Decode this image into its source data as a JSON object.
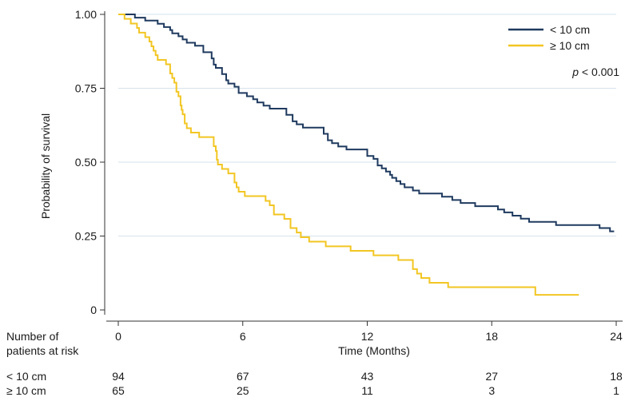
{
  "chart_data": {
    "type": "line",
    "title": "",
    "xlabel": "Time (Months)",
    "ylabel": "Probability of survival",
    "xlim": [
      0,
      24
    ],
    "ylim": [
      0,
      1
    ],
    "x_ticks": [
      0,
      6,
      12,
      18,
      24
    ],
    "y_ticks": [
      0,
      0.25,
      0.5,
      0.75,
      1.0
    ],
    "y_tick_labels": [
      "0",
      "0.25",
      "0.50",
      "0.75",
      "1.00"
    ],
    "grid": "horizontal",
    "legend_position": "top-right",
    "annotation": {
      "italic": "p",
      "text": " < 0.001"
    },
    "series": [
      {
        "name": "< 10 cm",
        "color": "#1f3a5f",
        "points": [
          [
            0,
            1.0
          ],
          [
            0.5,
            1.0
          ],
          [
            0.8,
            0.989
          ],
          [
            1.3,
            0.979
          ],
          [
            1.9,
            0.968
          ],
          [
            2.2,
            0.957
          ],
          [
            2.5,
            0.947
          ],
          [
            2.6,
            0.936
          ],
          [
            2.9,
            0.926
          ],
          [
            3.1,
            0.915
          ],
          [
            3.3,
            0.904
          ],
          [
            3.7,
            0.894
          ],
          [
            4.1,
            0.872
          ],
          [
            4.5,
            0.851
          ],
          [
            4.6,
            0.83
          ],
          [
            4.7,
            0.819
          ],
          [
            5.0,
            0.798
          ],
          [
            5.2,
            0.777
          ],
          [
            5.3,
            0.766
          ],
          [
            5.6,
            0.755
          ],
          [
            5.8,
            0.734
          ],
          [
            6.2,
            0.723
          ],
          [
            6.5,
            0.713
          ],
          [
            6.7,
            0.702
          ],
          [
            7.0,
            0.691
          ],
          [
            7.3,
            0.681
          ],
          [
            8.1,
            0.66
          ],
          [
            8.4,
            0.638
          ],
          [
            8.6,
            0.628
          ],
          [
            8.9,
            0.617
          ],
          [
            9.9,
            0.596
          ],
          [
            10.1,
            0.574
          ],
          [
            10.3,
            0.564
          ],
          [
            10.6,
            0.553
          ],
          [
            11.0,
            0.543
          ],
          [
            12.0,
            0.521
          ],
          [
            12.3,
            0.511
          ],
          [
            12.5,
            0.489
          ],
          [
            12.7,
            0.479
          ],
          [
            12.9,
            0.468
          ],
          [
            13.1,
            0.457
          ],
          [
            13.2,
            0.447
          ],
          [
            13.4,
            0.436
          ],
          [
            13.6,
            0.426
          ],
          [
            13.8,
            0.415
          ],
          [
            14.2,
            0.404
          ],
          [
            14.5,
            0.394
          ],
          [
            15.6,
            0.383
          ],
          [
            16.1,
            0.372
          ],
          [
            16.5,
            0.362
          ],
          [
            17.2,
            0.351
          ],
          [
            18.3,
            0.34
          ],
          [
            18.6,
            0.33
          ],
          [
            19.0,
            0.319
          ],
          [
            19.4,
            0.309
          ],
          [
            19.8,
            0.298
          ],
          [
            21.1,
            0.287
          ],
          [
            23.2,
            0.277
          ],
          [
            23.7,
            0.266
          ],
          [
            23.9,
            0.266
          ]
        ]
      },
      {
        "name": "≥ 10 cm",
        "color": "#f2c623",
        "points": [
          [
            0,
            1.0
          ],
          [
            0.3,
            0.985
          ],
          [
            0.6,
            0.969
          ],
          [
            0.9,
            0.954
          ],
          [
            1.0,
            0.938
          ],
          [
            1.3,
            0.923
          ],
          [
            1.5,
            0.908
          ],
          [
            1.6,
            0.892
          ],
          [
            1.7,
            0.877
          ],
          [
            1.8,
            0.862
          ],
          [
            1.9,
            0.846
          ],
          [
            2.3,
            0.831
          ],
          [
            2.5,
            0.8
          ],
          [
            2.6,
            0.785
          ],
          [
            2.7,
            0.769
          ],
          [
            2.8,
            0.738
          ],
          [
            2.9,
            0.723
          ],
          [
            3.0,
            0.692
          ],
          [
            3.05,
            0.677
          ],
          [
            3.1,
            0.662
          ],
          [
            3.2,
            0.631
          ],
          [
            3.3,
            0.615
          ],
          [
            3.5,
            0.6
          ],
          [
            3.9,
            0.585
          ],
          [
            4.6,
            0.554
          ],
          [
            4.7,
            0.538
          ],
          [
            4.75,
            0.508
          ],
          [
            4.8,
            0.492
          ],
          [
            5.0,
            0.477
          ],
          [
            5.3,
            0.462
          ],
          [
            5.6,
            0.431
          ],
          [
            5.7,
            0.415
          ],
          [
            5.8,
            0.4
          ],
          [
            6.1,
            0.385
          ],
          [
            7.1,
            0.369
          ],
          [
            7.3,
            0.354
          ],
          [
            7.5,
            0.323
          ],
          [
            8.0,
            0.308
          ],
          [
            8.3,
            0.277
          ],
          [
            8.6,
            0.262
          ],
          [
            8.8,
            0.246
          ],
          [
            9.2,
            0.231
          ],
          [
            10.0,
            0.215
          ],
          [
            11.2,
            0.2
          ],
          [
            12.3,
            0.185
          ],
          [
            13.5,
            0.169
          ],
          [
            14.2,
            0.138
          ],
          [
            14.4,
            0.123
          ],
          [
            14.6,
            0.108
          ],
          [
            15.0,
            0.092
          ],
          [
            15.9,
            0.077
          ],
          [
            20.1,
            0.051
          ],
          [
            22.2,
            0.051
          ]
        ]
      }
    ],
    "risk_table": {
      "header": [
        "Number of",
        "patients at risk"
      ],
      "rows": [
        {
          "label": "< 10 cm",
          "values": [
            94,
            67,
            43,
            27,
            18
          ]
        },
        {
          "label": "≥ 10 cm",
          "values": [
            65,
            25,
            11,
            3,
            1
          ]
        }
      ]
    }
  }
}
